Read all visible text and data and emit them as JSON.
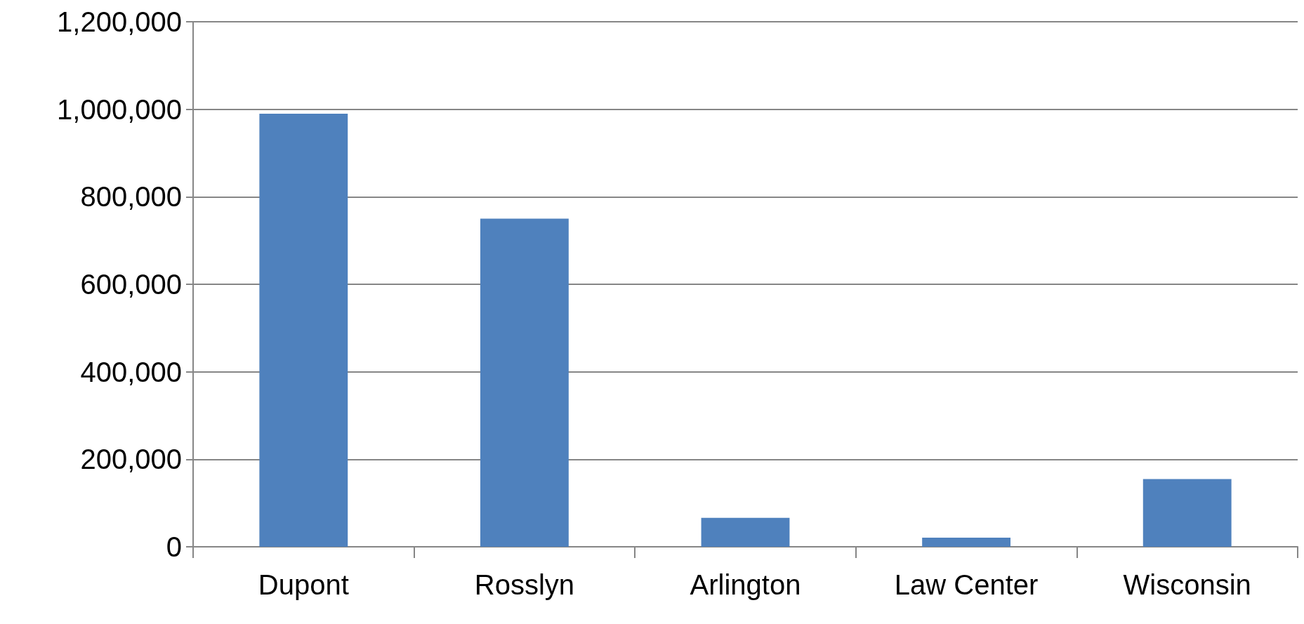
{
  "chart_data": {
    "type": "bar",
    "categories": [
      "Dupont",
      "Rosslyn",
      "Arlington",
      "Law Center",
      "Wisconsin"
    ],
    "values": [
      990000,
      750000,
      66000,
      21000,
      155000
    ],
    "color": "#4f81bd",
    "ylim": [
      0,
      1200000
    ],
    "yticks": [
      0,
      {
        "value": 200000,
        "label": "200,000"
      },
      {
        "value": 400000,
        "label": "400,000"
      },
      {
        "value": 600000,
        "label": "600,000"
      },
      {
        "value": 800000,
        "label": "800,000"
      },
      {
        "value": 1000000,
        "label": "1,000,000"
      },
      {
        "value": 1200000,
        "label": "1,200,000"
      }
    ],
    "grid": "y"
  }
}
